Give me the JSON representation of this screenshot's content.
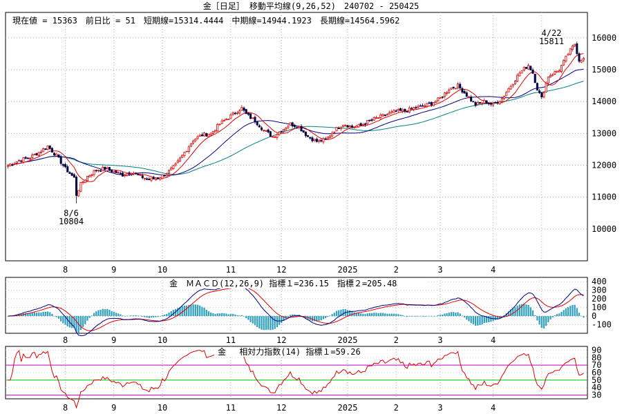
{
  "header": {
    "title": "金［日足］ 移動平均線(9,26,52)　240702 - 250425",
    "stats": "現在値 = 15363　前日比 = 51　短期線=15314.4444　中期線=14944.1923　長期線=14564.5962"
  },
  "annotations": {
    "high_date": "4/22",
    "high_value": "15811",
    "low_date": "8/6",
    "low_value": "10804"
  },
  "x_labels": [
    "8",
    "9",
    "10",
    "11",
    "12",
    "2025",
    "2",
    "3",
    "4"
  ],
  "colors": {
    "short_ma": "#dd0000",
    "mid_ma": "#000080",
    "long_ma": "#008080",
    "candle_up": "#dd0000",
    "candle_down": "#000040",
    "macd1": "#000080",
    "macd2": "#dd0000",
    "histogram": "#30a0c0",
    "rsi": "#dd0000",
    "rsi_70": "#c000c0",
    "rsi_50": "#00c000",
    "rsi_30": "#c000c0"
  },
  "chart_data": [
    {
      "type": "candlestick",
      "title": "金［日足］ 移動平均線(9,26,52)　240702 - 250425",
      "y_ticks": [
        10000,
        11000,
        12000,
        13000,
        14000,
        15000,
        16000
      ],
      "ylim": [
        9000,
        16800
      ],
      "series_keypoints_close": [
        [
          0,
          12000
        ],
        [
          5,
          12150
        ],
        [
          10,
          12250
        ],
        [
          15,
          12450
        ],
        [
          18,
          12600
        ],
        [
          22,
          12300
        ],
        [
          26,
          11900
        ],
        [
          30,
          11600
        ],
        [
          31,
          11100
        ],
        [
          33,
          11400
        ],
        [
          36,
          11650
        ],
        [
          40,
          11850
        ],
        [
          44,
          11900
        ],
        [
          48,
          11800
        ],
        [
          52,
          11700
        ],
        [
          56,
          11800
        ],
        [
          60,
          11650
        ],
        [
          64,
          11550
        ],
        [
          68,
          11600
        ],
        [
          72,
          11750
        ],
        [
          76,
          12000
        ],
        [
          80,
          12400
        ],
        [
          84,
          12800
        ],
        [
          88,
          12950
        ],
        [
          92,
          13000
        ],
        [
          96,
          13300
        ],
        [
          100,
          13500
        ],
        [
          104,
          13700
        ],
        [
          106,
          13800
        ],
        [
          108,
          13600
        ],
        [
          112,
          13400
        ],
        [
          116,
          13100
        ],
        [
          120,
          12900
        ],
        [
          124,
          13100
        ],
        [
          128,
          13300
        ],
        [
          132,
          13200
        ],
        [
          136,
          12900
        ],
        [
          140,
          12750
        ],
        [
          144,
          12800
        ],
        [
          148,
          13100
        ],
        [
          152,
          13300
        ],
        [
          156,
          13200
        ],
        [
          160,
          13250
        ],
        [
          164,
          13400
        ],
        [
          168,
          13500
        ],
        [
          172,
          13600
        ],
        [
          176,
          13700
        ],
        [
          180,
          13700
        ],
        [
          184,
          13800
        ],
        [
          188,
          13850
        ],
        [
          192,
          13950
        ],
        [
          196,
          14100
        ],
        [
          200,
          14400
        ],
        [
          204,
          14500
        ],
        [
          208,
          14200
        ],
        [
          212,
          13900
        ],
        [
          216,
          14000
        ],
        [
          220,
          13900
        ],
        [
          224,
          14100
        ],
        [
          228,
          14500
        ],
        [
          232,
          14900
        ],
        [
          236,
          15150
        ],
        [
          238,
          14900
        ],
        [
          240,
          14400
        ],
        [
          242,
          14100
        ],
        [
          245,
          14800
        ],
        [
          250,
          15000
        ],
        [
          254,
          15500
        ],
        [
          257,
          15811
        ],
        [
          259,
          15300
        ],
        [
          261,
          15363
        ]
      ],
      "n_days": 262,
      "high": {
        "date": "4/22",
        "value": 15811
      },
      "low": {
        "date": "8/6",
        "value": 10804
      },
      "series": [
        {
          "name": "短期線",
          "period": 9,
          "last": 15314.4444
        },
        {
          "name": "中期線",
          "period": 26,
          "last": 14944.1923
        },
        {
          "name": "長期線",
          "period": 52,
          "last": 14564.5962
        }
      ]
    },
    {
      "type": "line",
      "title": "金　ＭＡＣＤ(12,26,9) 指標１=236.15　指標２=205.48",
      "y_ticks": [
        -100,
        0,
        100,
        200,
        300,
        400
      ],
      "y_tick_labels": [
        "-100",
        "0",
        "100",
        "200",
        "300",
        "400"
      ],
      "ylim": [
        -200,
        450
      ],
      "series": [
        {
          "name": "指標１",
          "last": 236.15
        },
        {
          "name": "指標２",
          "last": 205.48
        }
      ]
    },
    {
      "type": "line",
      "title": "金　 相対力指数(14) 指標１=59.26",
      "y_ticks": [
        30,
        40,
        50,
        60,
        70,
        80,
        90
      ],
      "y_tick_labels": [
        "30",
        "40",
        "50",
        "60",
        "70",
        "80",
        "90"
      ],
      "ylim": [
        25,
        95
      ],
      "levels": [
        70,
        50,
        30
      ],
      "series": [
        {
          "name": "指標１",
          "last": 59.26
        }
      ]
    }
  ],
  "panel_titles": {
    "macd": "金　ＭＡＣＤ(12,26,9) 指標１=236.15　指標２=205.48",
    "rsi": "金　 相対力指数(14) 指標１=59.26"
  }
}
